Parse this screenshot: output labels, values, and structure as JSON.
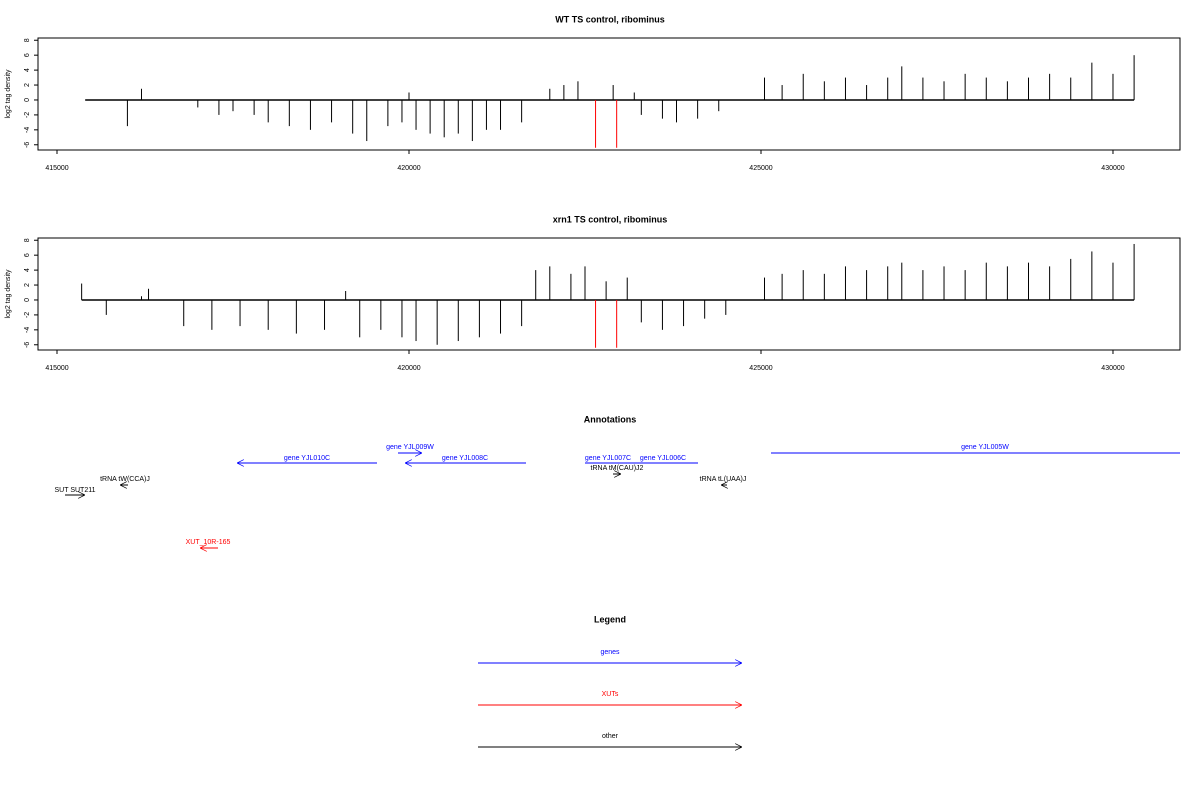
{
  "chart_data": [
    {
      "type": "bar",
      "title": "WT TS control, ribominus",
      "ylabel": "log2 tag density",
      "xlim": [
        414730,
        430952
      ],
      "ylim": [
        -6.7,
        8.3
      ],
      "xticks": [
        415000,
        420000,
        425000,
        430000
      ],
      "yticks": [
        -6,
        -4,
        -2,
        0,
        2,
        4,
        6,
        8
      ],
      "series": [
        {
          "color": "#000000",
          "x": [
            415400,
            416000,
            416200,
            417000,
            417300,
            417500,
            417800,
            418000,
            418300,
            418600,
            418900,
            419200,
            419400,
            419700,
            419900,
            420000,
            420100,
            420300,
            420500,
            420700,
            420900,
            421100,
            421300,
            421600,
            422000,
            422200,
            422400,
            422900,
            423200,
            423300,
            423600,
            423800,
            424100,
            424400,
            425050,
            425300,
            425600,
            425900,
            426200,
            426500,
            426800,
            427000,
            427300,
            427600,
            427900,
            428200,
            428500,
            428800,
            429100,
            429400,
            429700,
            430000,
            430300
          ],
          "values": [
            0,
            -3.5,
            1.5,
            -1,
            -2,
            -1.5,
            -2,
            -3,
            -3.5,
            -4,
            -3,
            -4.5,
            -5.5,
            -3.5,
            -3,
            1,
            -4,
            -4.5,
            -5,
            -4.5,
            -5.5,
            -4,
            -4,
            -3,
            1.5,
            2,
            2.5,
            2,
            1,
            -2,
            -2.5,
            -3,
            -2.5,
            -1.5,
            3,
            2,
            3.5,
            2.5,
            3,
            2,
            3,
            4.5,
            3,
            2.5,
            3.5,
            3,
            2.5,
            3,
            3.5,
            3,
            5,
            3.5,
            6
          ]
        },
        {
          "color": "#ff0000",
          "x": [
            422650,
            422950
          ],
          "values": [
            -6.4,
            -6.4
          ]
        }
      ]
    },
    {
      "type": "bar",
      "title": "xrn1 TS control, ribominus",
      "ylabel": "log2 tag density",
      "xlim": [
        414730,
        430952
      ],
      "ylim": [
        -6.7,
        8.3
      ],
      "xticks": [
        415000,
        420000,
        425000,
        430000
      ],
      "yticks": [
        -6,
        -4,
        -2,
        0,
        2,
        4,
        6,
        8
      ],
      "series": [
        {
          "color": "#000000",
          "x": [
            415350,
            415700,
            416200,
            416300,
            416800,
            417200,
            417600,
            418000,
            418400,
            418800,
            419100,
            419300,
            419600,
            419900,
            420100,
            420400,
            420700,
            421000,
            421300,
            421600,
            421800,
            422000,
            422300,
            422500,
            422800,
            423100,
            423300,
            423600,
            423900,
            424200,
            424500,
            425050,
            425300,
            425600,
            425900,
            426200,
            426500,
            426800,
            427000,
            427300,
            427600,
            427900,
            428200,
            428500,
            428800,
            429100,
            429400,
            429700,
            430000,
            430300
          ],
          "values": [
            2.2,
            -2,
            0.5,
            1.5,
            -3.5,
            -4,
            -3.5,
            -4,
            -4.5,
            -4,
            1.2,
            -5,
            -4,
            -5,
            -5.5,
            -6,
            -5.5,
            -5,
            -4.5,
            -3.5,
            4,
            4.5,
            3.5,
            4.5,
            2.5,
            3,
            -3,
            -4,
            -3.5,
            -2.5,
            -2,
            3,
            3.5,
            4,
            3.5,
            4.5,
            4,
            4.5,
            5,
            4,
            4.5,
            4,
            5,
            4.5,
            5,
            4.5,
            5.5,
            6.5,
            5,
            7.5
          ]
        },
        {
          "color": "#ff0000",
          "x": [
            422650,
            422950
          ],
          "values": [
            -6.4,
            -6.4
          ]
        }
      ]
    }
  ],
  "annotations": {
    "title": "Annotations",
    "items": [
      "gene YJL010C",
      "gene YJL009W",
      "gene YJL008C",
      "gene YJL007C",
      "gene YJL006C",
      "gene YJL005W",
      "tRNA tW(CCA)J",
      "SUT SUT211",
      "tRNA tM(CAU)J2",
      "tRNA tL(UAA)J",
      "XUT_10R-165"
    ]
  },
  "legend": {
    "title": "Legend",
    "items": [
      "genes",
      "XUTs",
      "other"
    ]
  }
}
